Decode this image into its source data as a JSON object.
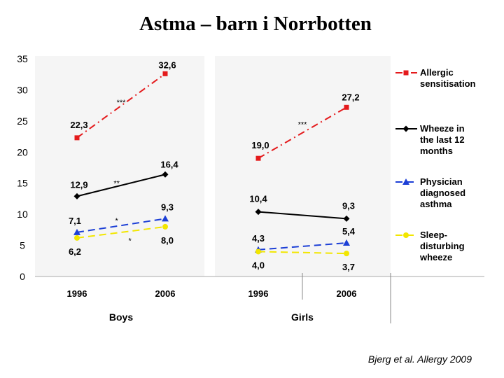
{
  "title": "Astma – barn i Norrbotten",
  "citation": "Bjerg et al. Allergy 2009",
  "chart_data": {
    "type": "line",
    "y_range": [
      0,
      35
    ],
    "y_ticks": [
      "0",
      "5",
      "10",
      "15",
      "20",
      "25",
      "30",
      "35"
    ],
    "y_tick_values": [
      0,
      5,
      10,
      15,
      20,
      25,
      30,
      35
    ],
    "grid": false,
    "legend_position": "right",
    "series_styles": [
      {
        "key": "allergic",
        "color": "#e41a1c",
        "dash": "dashdot",
        "marker": "square"
      },
      {
        "key": "wheeze",
        "color": "#000000",
        "dash": "solid",
        "marker": "diamond"
      },
      {
        "key": "physician",
        "color": "#1c3fd6",
        "dash": "dashed",
        "marker": "triangle"
      },
      {
        "key": "sleep",
        "color": "#f2e600",
        "dash": "dashed",
        "marker": "circle"
      }
    ],
    "panels": [
      {
        "name": "Boys",
        "x": [
          "1996",
          "2006"
        ],
        "series": [
          {
            "key": "allergic",
            "name": "Allergic sensitisation",
            "values": [
              22.3,
              32.6
            ],
            "labels": [
              "22,3",
              "32,6"
            ]
          },
          {
            "key": "wheeze",
            "name": "Wheeze in the last 12 months",
            "values": [
              12.9,
              16.4
            ],
            "labels": [
              "12,9",
              "16,4"
            ]
          },
          {
            "key": "physician",
            "name": "Physician diagnosed asthma",
            "values": [
              7.1,
              9.3
            ],
            "labels": [
              "7,1",
              "9,3"
            ]
          },
          {
            "key": "sleep",
            "name": "Sleep-disturbing wheeze",
            "values": [
              6.2,
              8.0
            ],
            "labels": [
              "6,2",
              "8,0"
            ]
          }
        ],
        "significance": [
          {
            "text": "***",
            "at_value": 28.0,
            "at_x": 0.5
          },
          {
            "text": "**",
            "at_value": 15.0,
            "at_x": 0.45
          },
          {
            "text": "*",
            "at_value": 9.0,
            "at_x": 0.45
          },
          {
            "text": "*",
            "at_value": 5.8,
            "at_x": 0.6
          }
        ]
      },
      {
        "name": "Girls",
        "x": [
          "1996",
          "2006"
        ],
        "series": [
          {
            "key": "allergic",
            "name": "Allergic sensitisation",
            "values": [
              19.0,
              27.2
            ],
            "labels": [
              "19,0",
              "27,2"
            ]
          },
          {
            "key": "wheeze",
            "name": "Wheeze in the last 12 months",
            "values": [
              10.4,
              9.3
            ],
            "labels": [
              "10,4",
              "9,3"
            ]
          },
          {
            "key": "physician",
            "name": "Physician diagnosed asthma",
            "values": [
              4.3,
              5.4
            ],
            "labels": [
              "4,3",
              "5,4"
            ]
          },
          {
            "key": "sleep",
            "name": "Sleep-disturbing wheeze",
            "values": [
              4.0,
              3.7
            ],
            "labels": [
              "4,0",
              "3,7"
            ]
          }
        ],
        "significance": [
          {
            "text": "***",
            "at_value": 24.5,
            "at_x": 0.5
          }
        ]
      }
    ],
    "legend": [
      {
        "key": "allergic",
        "lines": [
          "Allergic",
          "sensitisation"
        ]
      },
      {
        "key": "wheeze",
        "lines": [
          "Wheeze in",
          "the last 12",
          "months"
        ]
      },
      {
        "key": "physician",
        "lines": [
          "Physician",
          "diagnosed",
          "asthma"
        ]
      },
      {
        "key": "sleep",
        "lines": [
          "Sleep-",
          "disturbing",
          "wheeze"
        ]
      }
    ]
  }
}
